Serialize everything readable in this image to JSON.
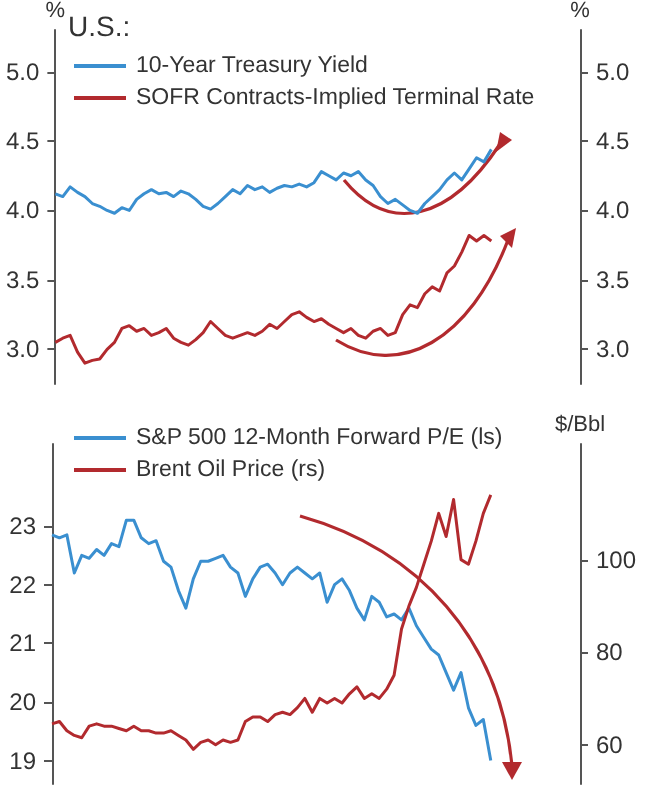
{
  "chart_data": [
    {
      "type": "line",
      "legend_title": "U.S.:",
      "ylabel": "%",
      "y2label": "%",
      "legend": "top left",
      "grid": false,
      "marker": "none",
      "line_style": "solid",
      "categories": [
        null,
        null,
        null,
        null,
        null,
        null,
        null,
        null,
        null,
        null,
        null,
        null,
        null,
        null,
        null,
        null,
        null,
        null,
        null,
        null,
        null,
        null,
        null,
        null,
        null,
        null,
        null,
        null,
        null,
        null,
        null,
        null,
        null,
        null,
        null,
        null,
        null,
        null,
        null,
        null,
        null,
        null,
        null,
        null,
        null,
        null,
        null,
        null,
        null,
        null,
        null,
        null,
        null,
        null,
        null,
        null,
        null,
        null,
        null,
        null,
        null,
        null,
        null,
        null,
        null,
        null,
        null,
        null,
        null,
        null,
        null,
        null
      ],
      "ylim": [
        2.75,
        5.3
      ],
      "yticks": [
        {
          "value": 3,
          "label": "3.0"
        },
        {
          "value": 3.5,
          "label": "3.5"
        },
        {
          "value": 4,
          "label": "4.0"
        },
        {
          "value": 4.5,
          "label": "4.5"
        },
        {
          "value": 5,
          "label": "5.0"
        }
      ],
      "y2lim": [
        2.75,
        5.3
      ],
      "y2ticks": [
        {
          "value": 3,
          "label": "3.0"
        },
        {
          "value": 3.5,
          "label": "3.5"
        },
        {
          "value": 4,
          "label": "4.0"
        },
        {
          "value": 4.5,
          "label": "4.5"
        },
        {
          "value": 5,
          "label": "5.0"
        }
      ],
      "series": [
        {
          "name": "10-Year Treasury Yield",
          "color": "#3a8fd0",
          "values": [
            4.12,
            4.1,
            4.17,
            4.13,
            4.1,
            4.05,
            4.03,
            4.0,
            3.98,
            4.02,
            4.0,
            4.08,
            4.12,
            4.15,
            4.12,
            4.13,
            4.1,
            4.14,
            4.12,
            4.08,
            4.03,
            4.01,
            4.05,
            4.1,
            4.15,
            4.12,
            4.18,
            4.15,
            4.17,
            4.13,
            4.16,
            4.18,
            4.17,
            4.19,
            4.17,
            4.2,
            4.28,
            4.25,
            4.22,
            4.27,
            4.25,
            4.28,
            4.22,
            4.18,
            4.1,
            4.05,
            4.08,
            4.04,
            4.0,
            3.98,
            4.05,
            4.1,
            4.15,
            4.22,
            4.27,
            4.22,
            4.3,
            4.38,
            4.35,
            4.44,
            null,
            null,
            null,
            null,
            null,
            null,
            null,
            null,
            null,
            null,
            null,
            null
          ]
        },
        {
          "name": "SOFR Contracts-Implied Terminal Rate",
          "color": "#b22a2e",
          "values": [
            3.05,
            3.08,
            3.1,
            2.98,
            2.9,
            2.92,
            2.93,
            3.0,
            3.05,
            3.15,
            3.17,
            3.13,
            3.15,
            3.1,
            3.12,
            3.15,
            3.08,
            3.05,
            3.03,
            3.07,
            3.12,
            3.2,
            3.15,
            3.1,
            3.08,
            3.1,
            3.12,
            3.1,
            3.13,
            3.18,
            3.15,
            3.2,
            3.25,
            3.27,
            3.23,
            3.2,
            3.22,
            3.18,
            3.15,
            3.12,
            3.15,
            3.1,
            3.08,
            3.13,
            3.15,
            3.1,
            3.12,
            3.25,
            3.32,
            3.3,
            3.4,
            3.45,
            3.42,
            3.55,
            3.6,
            3.7,
            3.82,
            3.78,
            3.82,
            3.78,
            null,
            null,
            null,
            null,
            null,
            null,
            null,
            null,
            null,
            null,
            null,
            null
          ]
        }
      ]
    },
    {
      "type": "line",
      "y2label": "$/Bbl",
      "legend": "top left",
      "grid": false,
      "marker": "none",
      "line_style": "solid",
      "categories": [
        null,
        null,
        null,
        null,
        null,
        null,
        null,
        null,
        null,
        null,
        null,
        null,
        null,
        null,
        null,
        null,
        null,
        null,
        null,
        null,
        null,
        null,
        null,
        null,
        null,
        null,
        null,
        null,
        null,
        null,
        null,
        null,
        null,
        null,
        null,
        null,
        null,
        null,
        null,
        null,
        null,
        null,
        null,
        null,
        null,
        null,
        null,
        null,
        null,
        null,
        null,
        null,
        null,
        null,
        null,
        null,
        null,
        null,
        null,
        null,
        null,
        null,
        null,
        null,
        null,
        null,
        null,
        null,
        null,
        null,
        null,
        null
      ],
      "ylim": [
        18.6,
        24.4
      ],
      "yticks": [
        19,
        20,
        21,
        22,
        23
      ],
      "y2lim": [
        51.5,
        125
      ],
      "y2ticks": [
        60,
        80,
        100
      ],
      "series": [
        {
          "name": "S&P 500 12-Month Forward P/E (ls)",
          "color": "#3a8fd0",
          "values": [
            22.85,
            22.8,
            22.85,
            22.2,
            22.5,
            22.45,
            22.6,
            22.5,
            22.7,
            22.65,
            23.1,
            23.1,
            22.8,
            22.7,
            22.75,
            22.4,
            22.3,
            21.9,
            21.6,
            22.1,
            22.4,
            22.4,
            22.45,
            22.5,
            22.3,
            22.2,
            21.8,
            22.1,
            22.3,
            22.35,
            22.2,
            22.0,
            22.2,
            22.3,
            22.2,
            22.1,
            22.2,
            21.7,
            22.0,
            22.1,
            21.9,
            21.6,
            21.4,
            21.8,
            21.7,
            21.45,
            21.5,
            21.4,
            21.6,
            21.3,
            21.1,
            20.9,
            20.8,
            20.5,
            20.2,
            20.5,
            19.9,
            19.6,
            19.7,
            19.0,
            null,
            null,
            null,
            null,
            null,
            null,
            null,
            null,
            null,
            null,
            null,
            null
          ]
        },
        {
          "name": "Brent Oil Price (rs)",
          "color": "#b22a2e",
          "axis": "y2",
          "values": [
            64.5,
            65,
            63,
            62,
            61.5,
            64,
            64.5,
            64,
            64,
            63.5,
            63,
            64,
            63,
            63,
            62.5,
            62.5,
            63,
            62,
            61,
            59,
            60.5,
            61,
            60,
            61,
            60.5,
            61,
            65,
            66,
            66,
            65,
            66.5,
            67,
            66.5,
            68,
            70,
            67,
            70,
            69,
            70,
            69,
            71,
            72.5,
            70,
            71,
            70,
            72,
            75,
            85,
            90,
            94,
            99,
            104,
            110,
            105,
            113,
            100,
            99,
            104,
            110,
            114,
            null,
            null,
            null,
            null,
            null,
            null,
            null,
            null,
            null,
            null,
            null,
            null
          ]
        }
      ]
    }
  ]
}
